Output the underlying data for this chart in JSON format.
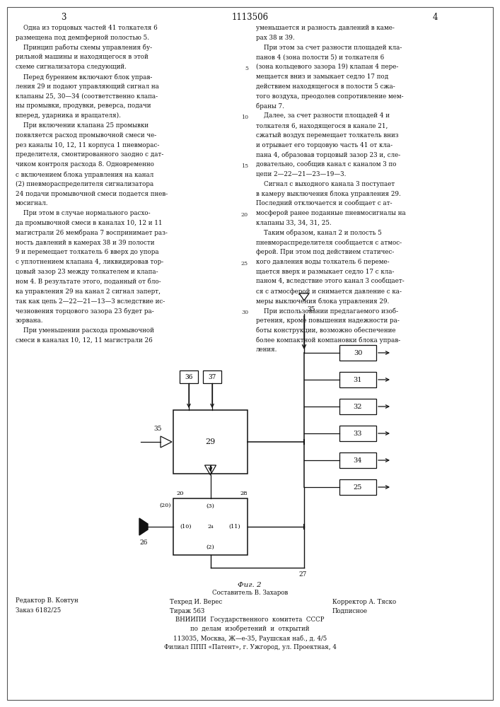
{
  "page_width": 7.07,
  "page_height": 10.0,
  "bg_color": "#ffffff",
  "header_num": "1113506",
  "col_left_header": "3",
  "col_right_header": "4",
  "text_col_left": [
    "    Одна из торцовых частей 41 толкателя 6",
    "размещена под демпферной полостью 5.",
    "    Принцип работы схемы управления бу-",
    "рильной машины и находящегося в этой",
    "схеме сигнализатора следующий.",
    "    Перед бурением включают блок управ-",
    "ления 29 и подают управляющий сигнал на",
    "клапаны 25, 30—34 (соответственно клапа-",
    "ны промывки, продувки, реверса, подачи",
    "вперед, ударника и вращателя).",
    "    При включении клапана 25 промывки",
    "появляется расход промывочной смеси че-",
    "рез каналы 10, 12, 11 корпуса 1 пневморас-",
    "пределителя, смонтированного заодно с дат-",
    "чиком контроля расхода 8. Одновременно",
    "с включением блока управления на канал",
    "(2) пневмораспределителя сигнализатора",
    "24 подачи промывочной смеси подается пнев-",
    "мосигнал.",
    "    При этом в случае нормального расхо-",
    "да промывочной смеси в каналах 10, 12 и 11",
    "магистрали 26 мембрана 7 воспринимает раз-",
    "ность давлений в камерах 38 и 39 полости",
    "9 и перемещает толкатель 6 вверх до упора",
    "с уплотнением клапана 4, ликвидировав тор-",
    "цовый зазор 23 между толкателем и клапа-",
    "ном 4. В результате этого, поданный от бло-",
    "ка управления 29 на канал 2 сигнал заперт,",
    "так как цепь 2—22—21—13—3 вследствие ис-",
    "чезновения торцового зазора 23 будет ра-",
    "зорвана.",
    "    При уменьшении расхода промывочной",
    "смеси в каналах 10, 12, 11 магистрали 26"
  ],
  "text_col_right": [
    "уменьшается и разность давлений в каме-",
    "рах 38 и 39.",
    "    При этом за счет разности площадей кла-",
    "панов 4 (зона полости 5) и толкателя 6",
    "(зона кольцевого зазора 19) клапан 4 пере-",
    "мещается вниз и замыкает седло 17 под",
    "действием находящегося в полости 5 сжа-",
    "того воздуха, преодолев сопротивление мем-",
    "браны 7.",
    "    Далее, за счет разности площадей 4 и",
    "толкателя 6, находящегося в канале 21,",
    "сжатый воздух перемещает толкатель вниз",
    "и отрывает его торцовую часть 41 от кла-",
    "пана 4, образовав торцовый зазор 23 и, сле-",
    "довательно, сообщив канал с каналом 3 по",
    "цепи 2—22—21—23—19—3.",
    "    Сигнал с выходного канала 3 поступает",
    "в камеру выключения блока управления 29.",
    "Последний отключается и сообщает с ат-",
    "мосферой ранее поданные пневмосигналы на",
    "клапаны 33, 34, 31, 25.",
    "    Таким образом, канал 2 и полость 5",
    "пневмораспределителя сообщается с атмос-",
    "ферой. При этом под действием статичес-",
    "кого давления воды толкатель 6 переме-",
    "щается вверх и размыкает седло 17 с кла-",
    "паном 4, вследствие этого канал 3 сообщает-",
    "ся с атмосферой и снимается давление с ка-",
    "меры выключения блока управления 29.",
    "    При использовании предлагаемого изоб-",
    "ретения, кроме повышения надежности ра-",
    "боты конструкции, возможно обеспечение",
    "более компактной компановки блока управ-",
    "ления."
  ],
  "fig_caption": "Фиг. 2",
  "footer_left_1": "Редактор В. Ковтун",
  "footer_left_2": "Заказ 6182/25",
  "footer_sost": "Составитель В. Захаров",
  "footer_tex": "Техред И. Верес",
  "footer_korr": "Корректор А. Тяско",
  "footer_tirazh": "Тираж 563",
  "footer_podp": "Подписное",
  "footer_vnipi1": "ВНИИПИ  Государственного  комитета  СССР",
  "footer_vnipi2": "по  делам  изобретений  и  открытий",
  "footer_addr": "113035, Москва, Ж—е-35, Раушская наб., д. 4/5",
  "footer_filial": "Филиал ППП «Патент», г. Ужгород, ул. Проектная, 4"
}
